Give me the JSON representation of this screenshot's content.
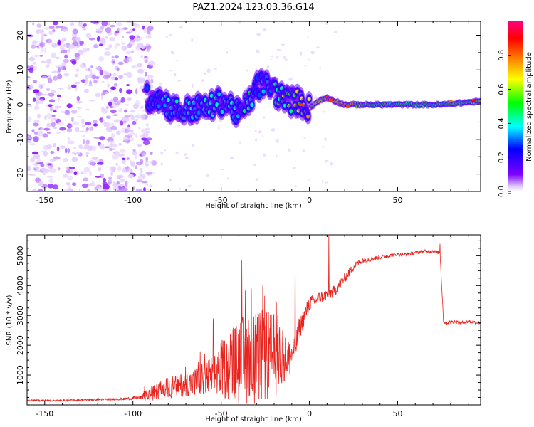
{
  "title": "PAZ1.2024.123.03.36.G14",
  "chart_data": [
    {
      "type": "heatmap",
      "xlabel": "Height of straight line (km)",
      "ylabel": "Frequency (Hz)",
      "xlim": [
        -160,
        97
      ],
      "ylim": [
        -25,
        24
      ],
      "xticks": [
        -150,
        -100,
        -50,
        0,
        50
      ],
      "yticks": [
        20,
        10,
        0,
        -10,
        -20
      ],
      "noise_region_x": [
        -160,
        -92
      ],
      "ridge": {
        "x": [
          -92,
          -85,
          -78,
          -72,
          -65,
          -58,
          -50,
          -45,
          -40,
          -35,
          -30,
          -26,
          -22,
          -18,
          -12,
          -6,
          0,
          5,
          10,
          15,
          20,
          30,
          50,
          75,
          97
        ],
        "freq_hz": [
          2,
          2,
          -1,
          -2,
          -1,
          -1,
          1,
          0,
          -3,
          0,
          5,
          6,
          5,
          3,
          1,
          1,
          -1,
          1,
          2,
          1,
          0,
          0,
          0,
          0,
          1
        ],
        "amplitude": [
          0.3,
          0.35,
          0.4,
          0.45,
          0.4,
          0.45,
          0.4,
          0.45,
          0.35,
          0.5,
          0.3,
          0.35,
          0.4,
          0.55,
          0.6,
          0.65,
          0.75,
          0.6,
          0.8,
          0.7,
          0.75,
          0.6,
          0.5,
          0.55,
          0.6
        ],
        "bright_spots": [
          {
            "x": 12,
            "freq_hz": 1,
            "amplitude": 0.85
          },
          {
            "x": -5,
            "freq_hz": 0,
            "amplitude": 0.85
          },
          {
            "x": 22,
            "freq_hz": -0.5,
            "amplitude": 0.85
          },
          {
            "x": 80,
            "freq_hz": 1,
            "amplitude": 0.8
          },
          {
            "x": 93,
            "freq_hz": 1,
            "amplitude": 0.9
          }
        ]
      },
      "colorbar": {
        "label": "Normalized spectral amplitude",
        "range": [
          0.0,
          1.0
        ],
        "ticks": [
          "0.0",
          "0.2",
          "0.4",
          "0.6",
          "0.8"
        ],
        "colormap": [
          "#ffffff",
          "#7f00ff",
          "#0000ff",
          "#00ffff",
          "#00ff00",
          "#ffff00",
          "#ff8000",
          "#ff0000",
          "#ff0080"
        ]
      }
    },
    {
      "type": "line",
      "xlabel": "Height of straight line (km)",
      "ylabel": "SNR (10 * v/v)",
      "xlim": [
        -160,
        97
      ],
      "ylim": [
        0,
        5700
      ],
      "xticks": [
        -150,
        -100,
        -50,
        0,
        50
      ],
      "yticks": [
        1000,
        2000,
        3000,
        4000,
        5000
      ],
      "color": "#e8241f",
      "series": [
        {
          "x": [
            -160,
            -140,
            -120,
            -105,
            -95,
            -90,
            -85,
            -80,
            -75,
            -70,
            -65,
            -60,
            -55,
            -50,
            -45,
            -40,
            -35,
            -30,
            -25,
            -20,
            -15,
            -12,
            -10,
            -8,
            -6,
            -4,
            -2,
            0,
            3,
            6,
            10,
            14,
            18,
            22,
            26,
            30,
            35,
            40,
            45,
            50,
            55,
            60,
            65,
            70,
            74,
            76,
            78,
            82,
            86,
            90,
            97
          ],
          "values": [
            150,
            150,
            180,
            200,
            250,
            350,
            450,
            550,
            600,
            650,
            700,
            800,
            900,
            1100,
            1200,
            1300,
            1350,
            1400,
            1450,
            1500,
            1600,
            1500,
            1700,
            1900,
            2500,
            2800,
            3100,
            3400,
            3500,
            3600,
            3700,
            3800,
            4100,
            4400,
            4700,
            4850,
            4900,
            4950,
            5000,
            5050,
            5050,
            5100,
            5150,
            5150,
            5100,
            2800,
            2750,
            2800,
            2750,
            2800,
            2750
          ],
          "spread": [
            60,
            60,
            70,
            80,
            150,
            300,
            350,
            450,
            500,
            500,
            600,
            700,
            900,
            1200,
            1500,
            1800,
            2000,
            2000,
            2000,
            1800,
            1600,
            1500,
            1200,
            900,
            800,
            700,
            600,
            500,
            450,
            400,
            400,
            400,
            350,
            300,
            250,
            200,
            160,
            140,
            130,
            120,
            120,
            110,
            110,
            110,
            120,
            150,
            130,
            120,
            120,
            120,
            120
          ],
          "peaks": [
            {
              "x": -8,
              "values": 5200
            },
            {
              "x": 11,
              "values": 5650
            },
            {
              "x": 74,
              "values": 5400
            },
            {
              "x": -33,
              "values": 3900
            }
          ]
        }
      ]
    }
  ]
}
